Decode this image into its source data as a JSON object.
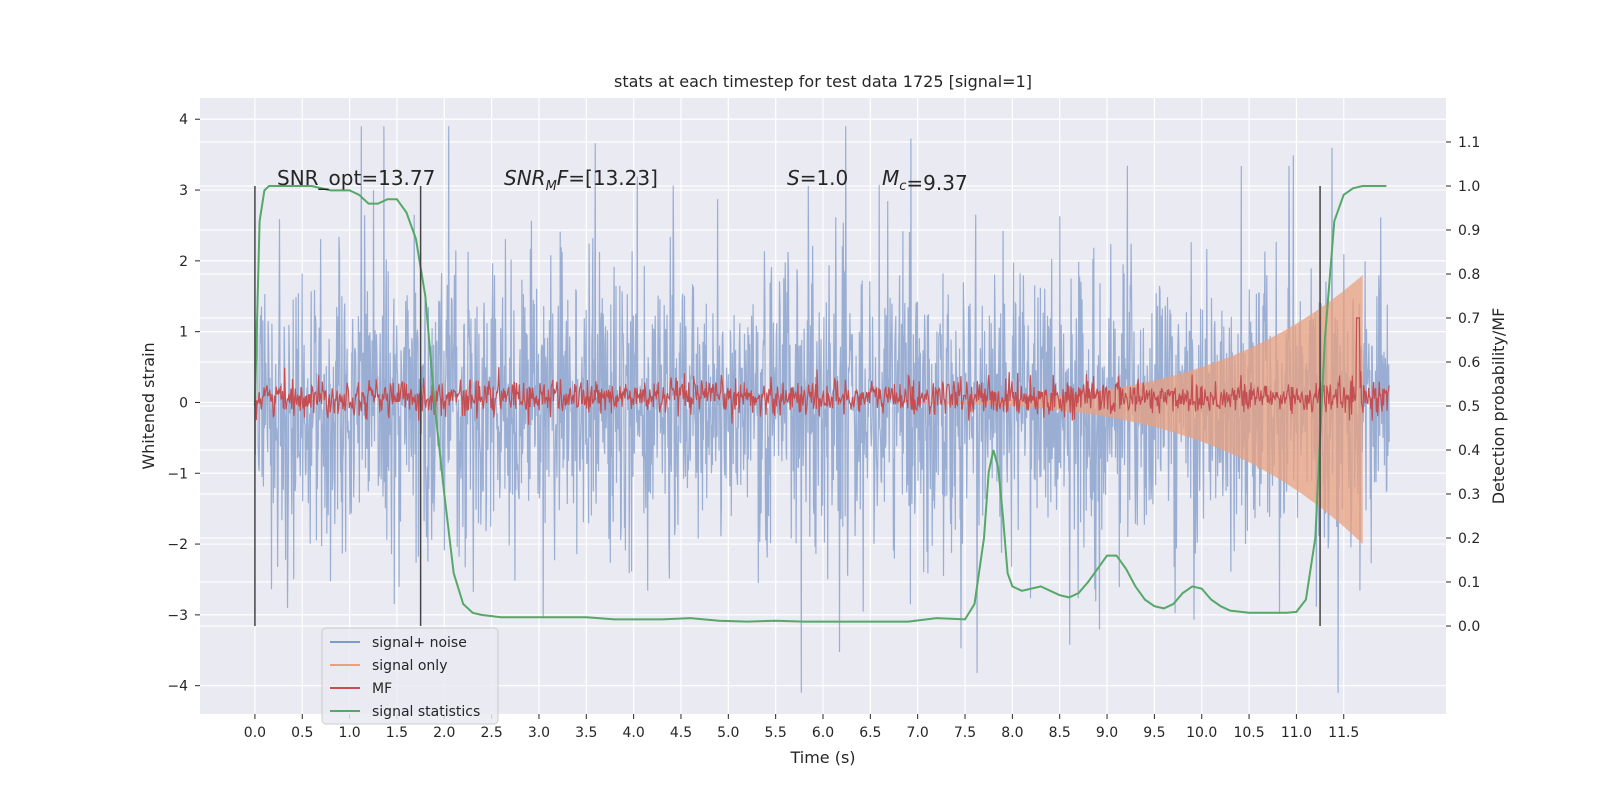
{
  "chart_data": {
    "type": "line",
    "title": "stats at each timestep for test data 1725 [signal=1]",
    "xlabel": "Time (s)",
    "ylabel": "Whitened strain",
    "ylabel_right": "Detection probability/MF",
    "xlim": [
      -0.58,
      12.58
    ],
    "ylim": [
      -4.4,
      4.3
    ],
    "ylim_right": [
      -0.2,
      1.2
    ],
    "x_ticks": [
      "0.0",
      "0.5",
      "1.0",
      "1.5",
      "2.0",
      "2.5",
      "3.0",
      "3.5",
      "4.0",
      "4.5",
      "5.0",
      "5.5",
      "6.0",
      "6.5",
      "7.0",
      "7.5",
      "8.0",
      "8.5",
      "9.0",
      "9.5",
      "10.0",
      "10.5",
      "11.0",
      "11.5"
    ],
    "y_ticks": [
      "4",
      "3",
      "2",
      "1",
      "0",
      "−1",
      "−2",
      "−3",
      "−4"
    ],
    "y_ticks_right": [
      "1.1",
      "1.0",
      "0.9",
      "0.8",
      "0.7",
      "0.6",
      "0.5",
      "0.4",
      "0.3",
      "0.2",
      "0.1",
      "0.0"
    ],
    "grid": true,
    "legend_position": "lower-left",
    "annotations": [
      {
        "prefix": "SNR_opt=",
        "value": "13.77"
      },
      {
        "prefix": "SNR",
        "sub": "M",
        "suffix": "F=",
        "value": "[13.23]"
      },
      {
        "prefix": "S",
        "suffix": "=",
        "value": "1.0"
      },
      {
        "prefix": "M",
        "sub": "c",
        "suffix": "=",
        "value": "9.37"
      }
    ],
    "vertical_lines_x": [
      0.0,
      1.75,
      11.25
    ],
    "series": [
      {
        "name": "signal+ noise",
        "color": "#7f99c8",
        "axis": "left",
        "x_range": [
          0.0,
          11.98
        ],
        "envelope_typical": [
          -1.8,
          1.8
        ],
        "extremes": {
          "max": 3.9,
          "min": -4.1
        }
      },
      {
        "name": "signal only",
        "color": "#e8a07f",
        "axis": "left",
        "chirp_start": 5.5,
        "chirp_end": 11.7,
        "peak_amplitude": 2.0
      },
      {
        "name": "MF",
        "color": "#c44e52",
        "axis": "right",
        "baseline": 0.52,
        "noise": 0.02,
        "peak": {
          "x": 11.65,
          "value": 0.7
        }
      },
      {
        "name": "signal statistics",
        "color": "#55a868",
        "axis": "right",
        "x": [
          0.0,
          0.05,
          0.1,
          0.15,
          0.2,
          0.3,
          0.4,
          0.6,
          0.8,
          1.0,
          1.1,
          1.2,
          1.3,
          1.4,
          1.5,
          1.6,
          1.7,
          1.8,
          1.9,
          2.0,
          2.1,
          2.2,
          2.3,
          2.4,
          2.6,
          2.8,
          3.0,
          3.2,
          3.5,
          3.8,
          4.0,
          4.3,
          4.6,
          4.9,
          5.2,
          5.5,
          5.8,
          6.0,
          6.3,
          6.6,
          6.9,
          7.2,
          7.5,
          7.6,
          7.7,
          7.75,
          7.8,
          7.85,
          7.9,
          7.95,
          8.0,
          8.1,
          8.2,
          8.3,
          8.4,
          8.5,
          8.6,
          8.7,
          8.8,
          8.9,
          9.0,
          9.1,
          9.2,
          9.3,
          9.4,
          9.5,
          9.6,
          9.7,
          9.8,
          9.9,
          10.0,
          10.1,
          10.2,
          10.3,
          10.5,
          10.7,
          10.9,
          11.0,
          11.1,
          11.2,
          11.3,
          11.4,
          11.5,
          11.6,
          11.7,
          11.8,
          11.9,
          11.95
        ],
        "values": [
          0.5,
          0.92,
          0.99,
          1.0,
          1.0,
          1.0,
          1.0,
          1.0,
          0.99,
          0.99,
          0.98,
          0.96,
          0.96,
          0.97,
          0.97,
          0.94,
          0.88,
          0.75,
          0.5,
          0.3,
          0.12,
          0.05,
          0.03,
          0.025,
          0.02,
          0.02,
          0.02,
          0.02,
          0.02,
          0.015,
          0.015,
          0.015,
          0.018,
          0.012,
          0.01,
          0.012,
          0.01,
          0.01,
          0.01,
          0.01,
          0.01,
          0.018,
          0.015,
          0.05,
          0.2,
          0.35,
          0.4,
          0.36,
          0.25,
          0.12,
          0.09,
          0.08,
          0.085,
          0.09,
          0.08,
          0.07,
          0.065,
          0.075,
          0.1,
          0.13,
          0.16,
          0.16,
          0.13,
          0.09,
          0.06,
          0.045,
          0.04,
          0.05,
          0.075,
          0.09,
          0.085,
          0.06,
          0.045,
          0.035,
          0.03,
          0.03,
          0.03,
          0.032,
          0.06,
          0.2,
          0.65,
          0.92,
          0.98,
          0.995,
          1.0,
          1.0,
          1.0,
          1.0
        ]
      }
    ]
  }
}
